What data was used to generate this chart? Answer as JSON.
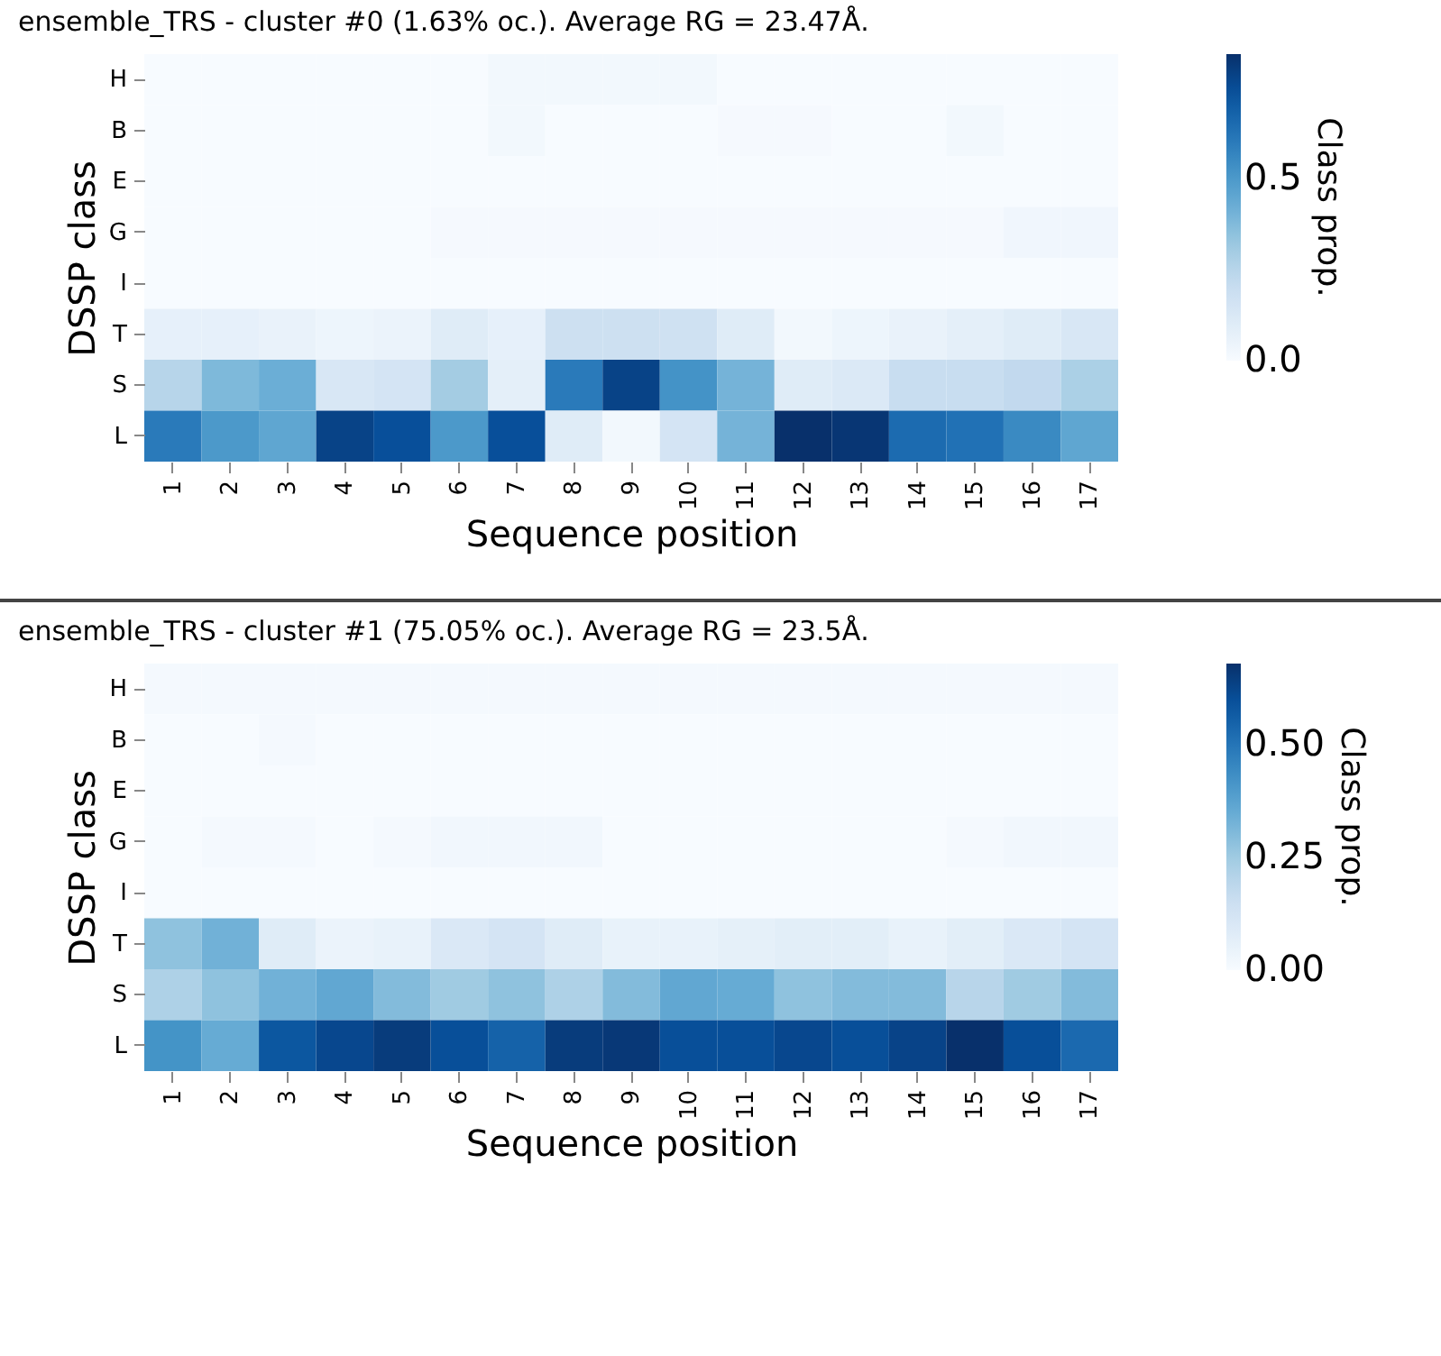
{
  "chart_data": [
    {
      "type": "heatmap",
      "title": "ensemble_TRS - cluster #0 (1.63% oc.). Average RG = 23.47Å.",
      "xlabel": "Sequence position",
      "ylabel": "DSSP class",
      "clabel": "Class prop.",
      "categories": [
        "1",
        "2",
        "3",
        "4",
        "5",
        "6",
        "7",
        "8",
        "9",
        "10",
        "11",
        "12",
        "13",
        "14",
        "15",
        "16",
        "17"
      ],
      "y_categories": [
        "H",
        "B",
        "E",
        "G",
        "I",
        "T",
        "S",
        "L"
      ],
      "cells": [
        [
          0,
          0,
          0,
          0,
          0,
          0,
          0.02,
          0.02,
          0.02,
          0.02,
          0,
          0,
          0,
          0,
          0,
          0,
          0
        ],
        [
          0,
          0,
          0,
          0,
          0,
          0,
          0.02,
          0,
          0,
          0,
          0.01,
          0.01,
          0,
          0,
          0.02,
          0,
          0
        ],
        [
          0,
          0,
          0,
          0,
          0,
          0,
          0,
          0,
          0,
          0,
          0,
          0,
          0,
          0,
          0,
          0,
          0
        ],
        [
          0,
          0,
          0,
          0,
          0,
          0.01,
          0.01,
          0.01,
          0.01,
          0.01,
          0.01,
          0.01,
          0.01,
          0.01,
          0.01,
          0.03,
          0.03
        ],
        [
          0,
          0,
          0,
          0,
          0,
          0,
          0,
          0,
          0,
          0,
          0,
          0,
          0,
          0,
          0,
          0,
          0
        ],
        [
          0.07,
          0.07,
          0.06,
          0.04,
          0.05,
          0.1,
          0.07,
          0.18,
          0.18,
          0.17,
          0.1,
          0.02,
          0.04,
          0.06,
          0.08,
          0.1,
          0.13
        ],
        [
          0.25,
          0.38,
          0.42,
          0.13,
          0.15,
          0.3,
          0.08,
          0.6,
          0.78,
          0.52,
          0.4,
          0.1,
          0.12,
          0.2,
          0.2,
          0.22,
          0.28
        ],
        [
          0.6,
          0.5,
          0.45,
          0.78,
          0.74,
          0.5,
          0.74,
          0.1,
          0.02,
          0.15,
          0.4,
          0.84,
          0.82,
          0.65,
          0.63,
          0.55,
          0.45
        ]
      ],
      "clim": [
        0,
        0.84
      ],
      "cticks": [
        {
          "value": 0,
          "label": "0.0"
        },
        {
          "value": 0.5,
          "label": "0.5"
        }
      ]
    },
    {
      "type": "heatmap",
      "title": "ensemble_TRS - cluster #1 (75.05% oc.). Average RG = 23.5Å.",
      "xlabel": "Sequence position",
      "ylabel": "DSSP class",
      "clabel": "Class prop.",
      "categories": [
        "1",
        "2",
        "3",
        "4",
        "5",
        "6",
        "7",
        "8",
        "9",
        "10",
        "11",
        "12",
        "13",
        "14",
        "15",
        "16",
        "17"
      ],
      "y_categories": [
        "H",
        "B",
        "E",
        "G",
        "I",
        "T",
        "S",
        "L"
      ],
      "cells": [
        [
          0.01,
          0.01,
          0.01,
          0.01,
          0.01,
          0.01,
          0.01,
          0.01,
          0.01,
          0.01,
          0.01,
          0.01,
          0.01,
          0.01,
          0.01,
          0.01,
          0.01
        ],
        [
          0,
          0,
          0.01,
          0,
          0,
          0,
          0,
          0,
          0,
          0,
          0,
          0,
          0,
          0,
          0,
          0,
          0
        ],
        [
          0,
          0,
          0,
          0,
          0,
          0,
          0,
          0,
          0,
          0,
          0,
          0,
          0,
          0,
          0,
          0,
          0
        ],
        [
          0,
          0.01,
          0.01,
          0,
          0.01,
          0.02,
          0.02,
          0.02,
          0,
          0,
          0,
          0,
          0,
          0,
          0.01,
          0.02,
          0.02
        ],
        [
          0,
          0,
          0,
          0,
          0,
          0,
          0,
          0,
          0,
          0,
          0,
          0,
          0,
          0,
          0,
          0,
          0
        ],
        [
          0.28,
          0.33,
          0.08,
          0.04,
          0.05,
          0.1,
          0.12,
          0.08,
          0.05,
          0.05,
          0.06,
          0.07,
          0.07,
          0.05,
          0.07,
          0.1,
          0.12
        ],
        [
          0.22,
          0.28,
          0.33,
          0.36,
          0.3,
          0.25,
          0.28,
          0.22,
          0.3,
          0.36,
          0.35,
          0.28,
          0.3,
          0.3,
          0.2,
          0.25,
          0.3
        ],
        [
          0.42,
          0.35,
          0.58,
          0.62,
          0.65,
          0.6,
          0.55,
          0.65,
          0.66,
          0.6,
          0.6,
          0.62,
          0.6,
          0.63,
          0.68,
          0.6,
          0.53
        ]
      ],
      "clim": [
        0,
        0.68
      ],
      "cticks": [
        {
          "value": 0,
          "label": "0.00"
        },
        {
          "value": 0.25,
          "label": "0.25"
        },
        {
          "value": 0.5,
          "label": "0.50"
        }
      ]
    }
  ]
}
